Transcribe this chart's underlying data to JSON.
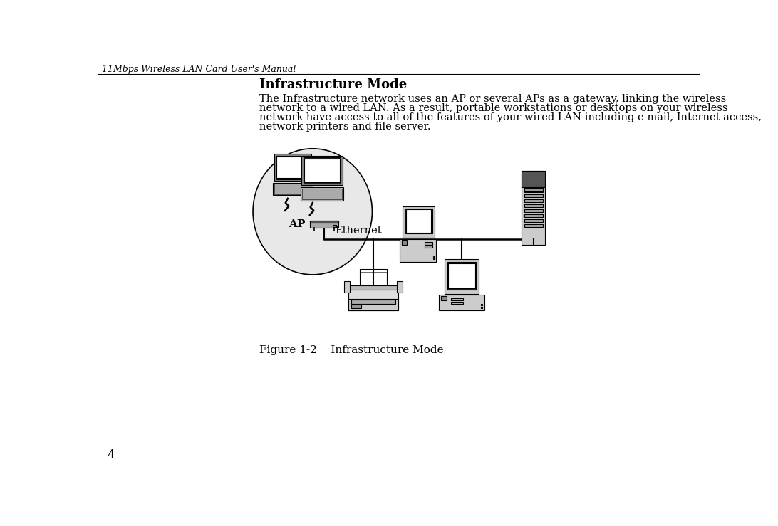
{
  "header_text": "11Mbps Wireless LAN Card User's Manual",
  "title": "Infrastructure Mode",
  "body_lines": [
    "The Infrastructure network uses an AP or several APs as a gateway, linking the wireless",
    "network to a wired LAN. As a result, portable workstations or desktops on your wireless",
    "network have access to all of the features of your wired LAN including e-mail, Internet access,",
    "network printers and file server."
  ],
  "figure_caption": "Figure 1-2    Infrastructure Mode",
  "page_number": "4",
  "bg_color": "#ffffff",
  "text_color": "#000000",
  "header_fontsize": 9,
  "title_fontsize": 13,
  "body_fontsize": 10.5,
  "caption_fontsize": 11,
  "page_fontsize": 12
}
